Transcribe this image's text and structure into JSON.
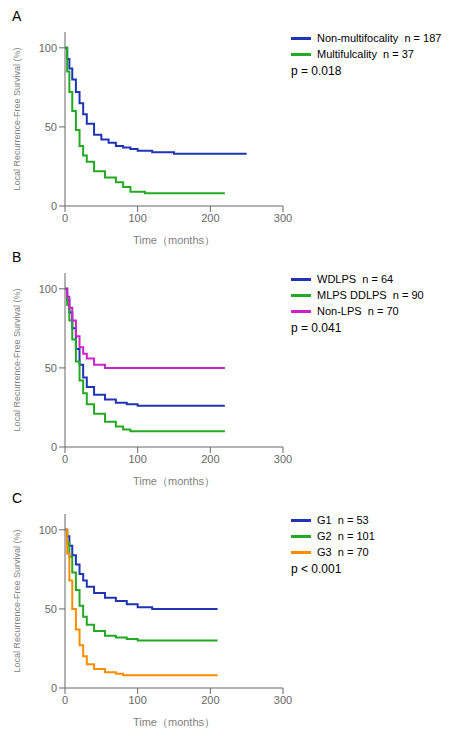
{
  "chart_data": [
    {
      "type": "step",
      "title": "A",
      "xlabel": "Time（months）",
      "ylabel": "Local Recurrence-Free Survival (%)",
      "xlim": [
        0,
        300
      ],
      "ylim": [
        0,
        110
      ],
      "xticks": [
        0,
        100,
        200,
        300
      ],
      "yticks": [
        0,
        50,
        100
      ],
      "grid": false,
      "legend": "right",
      "annotations": [
        "p = 0.018"
      ],
      "series": [
        {
          "name": "Non-multifocality  n = 187",
          "color": "#1f35b4",
          "x": [
            0,
            3,
            6,
            10,
            15,
            20,
            25,
            30,
            40,
            50,
            60,
            70,
            80,
            90,
            100,
            120,
            150,
            180,
            220,
            250
          ],
          "values": [
            100,
            93,
            87,
            80,
            72,
            65,
            58,
            52,
            45,
            42,
            40,
            38,
            37,
            36,
            35,
            34,
            33,
            33,
            33,
            33
          ]
        },
        {
          "name": "Multifulcality  n = 37",
          "color": "#22aa22",
          "x": [
            0,
            3,
            6,
            10,
            15,
            20,
            25,
            30,
            40,
            55,
            70,
            80,
            90,
            110,
            120,
            160,
            220
          ],
          "values": [
            100,
            85,
            72,
            60,
            48,
            38,
            32,
            28,
            22,
            18,
            15,
            12,
            9,
            8,
            8,
            8,
            8
          ]
        }
      ]
    },
    {
      "type": "step",
      "title": "B",
      "xlabel": "Time（months）",
      "ylabel": "Local Recurrence-Free Survival (%)",
      "xlim": [
        0,
        300
      ],
      "ylim": [
        0,
        110
      ],
      "xticks": [
        0,
        100,
        200,
        300
      ],
      "yticks": [
        0,
        50,
        100
      ],
      "grid": false,
      "legend": "right",
      "annotations": [
        "p = 0.041"
      ],
      "series": [
        {
          "name": "WDLPS  n = 64",
          "color": "#1f35b4",
          "x": [
            0,
            3,
            6,
            10,
            15,
            20,
            25,
            30,
            40,
            55,
            70,
            85,
            100,
            120,
            180,
            220
          ],
          "values": [
            100,
            93,
            85,
            75,
            62,
            52,
            44,
            38,
            33,
            30,
            28,
            27,
            26,
            26,
            26,
            26
          ]
        },
        {
          "name": "MLPS DDLPS  n = 90",
          "color": "#22aa22",
          "x": [
            0,
            3,
            6,
            10,
            15,
            20,
            25,
            30,
            40,
            55,
            70,
            80,
            90,
            100,
            120,
            180,
            220
          ],
          "values": [
            100,
            90,
            80,
            68,
            54,
            42,
            34,
            27,
            21,
            16,
            13,
            11,
            10,
            10,
            10,
            10,
            10
          ]
        },
        {
          "name": "Non-LPS  n = 70",
          "color": "#cc22cc",
          "x": [
            0,
            3,
            6,
            10,
            15,
            20,
            25,
            30,
            40,
            55,
            70,
            90,
            110,
            120,
            180,
            220
          ],
          "values": [
            100,
            95,
            88,
            80,
            70,
            63,
            59,
            56,
            52,
            50,
            50,
            50,
            50,
            50,
            50,
            50
          ]
        }
      ]
    },
    {
      "type": "step",
      "title": "C",
      "xlabel": "Time（months）",
      "ylabel": "Local Recurrence-Free Survival (%)",
      "xlim": [
        0,
        300
      ],
      "ylim": [
        0,
        110
      ],
      "xticks": [
        0,
        100,
        200,
        300
      ],
      "yticks": [
        0,
        50,
        100
      ],
      "grid": false,
      "legend": "right",
      "annotations": [
        "p < 0.001"
      ],
      "series": [
        {
          "name": "G1  n = 53",
          "color": "#1f35b4",
          "x": [
            0,
            3,
            6,
            10,
            15,
            20,
            25,
            30,
            40,
            55,
            70,
            85,
            100,
            120,
            180,
            210
          ],
          "values": [
            100,
            96,
            90,
            84,
            78,
            72,
            68,
            64,
            60,
            57,
            55,
            53,
            51,
            50,
            50,
            50
          ]
        },
        {
          "name": "G2  n = 101",
          "color": "#22aa22",
          "x": [
            0,
            3,
            6,
            10,
            15,
            20,
            25,
            30,
            40,
            55,
            70,
            85,
            100,
            140,
            180,
            210
          ],
          "values": [
            100,
            92,
            83,
            73,
            62,
            52,
            45,
            40,
            36,
            33,
            32,
            31,
            30,
            30,
            30,
            30
          ]
        },
        {
          "name": "G3  n = 70",
          "color": "#ff8c00",
          "x": [
            0,
            3,
            6,
            10,
            15,
            20,
            25,
            30,
            40,
            55,
            70,
            80,
            90,
            100,
            120,
            180,
            210
          ],
          "values": [
            100,
            85,
            68,
            50,
            37,
            27,
            20,
            15,
            12,
            10,
            9,
            8,
            8,
            8,
            8,
            8,
            8
          ]
        }
      ]
    }
  ]
}
